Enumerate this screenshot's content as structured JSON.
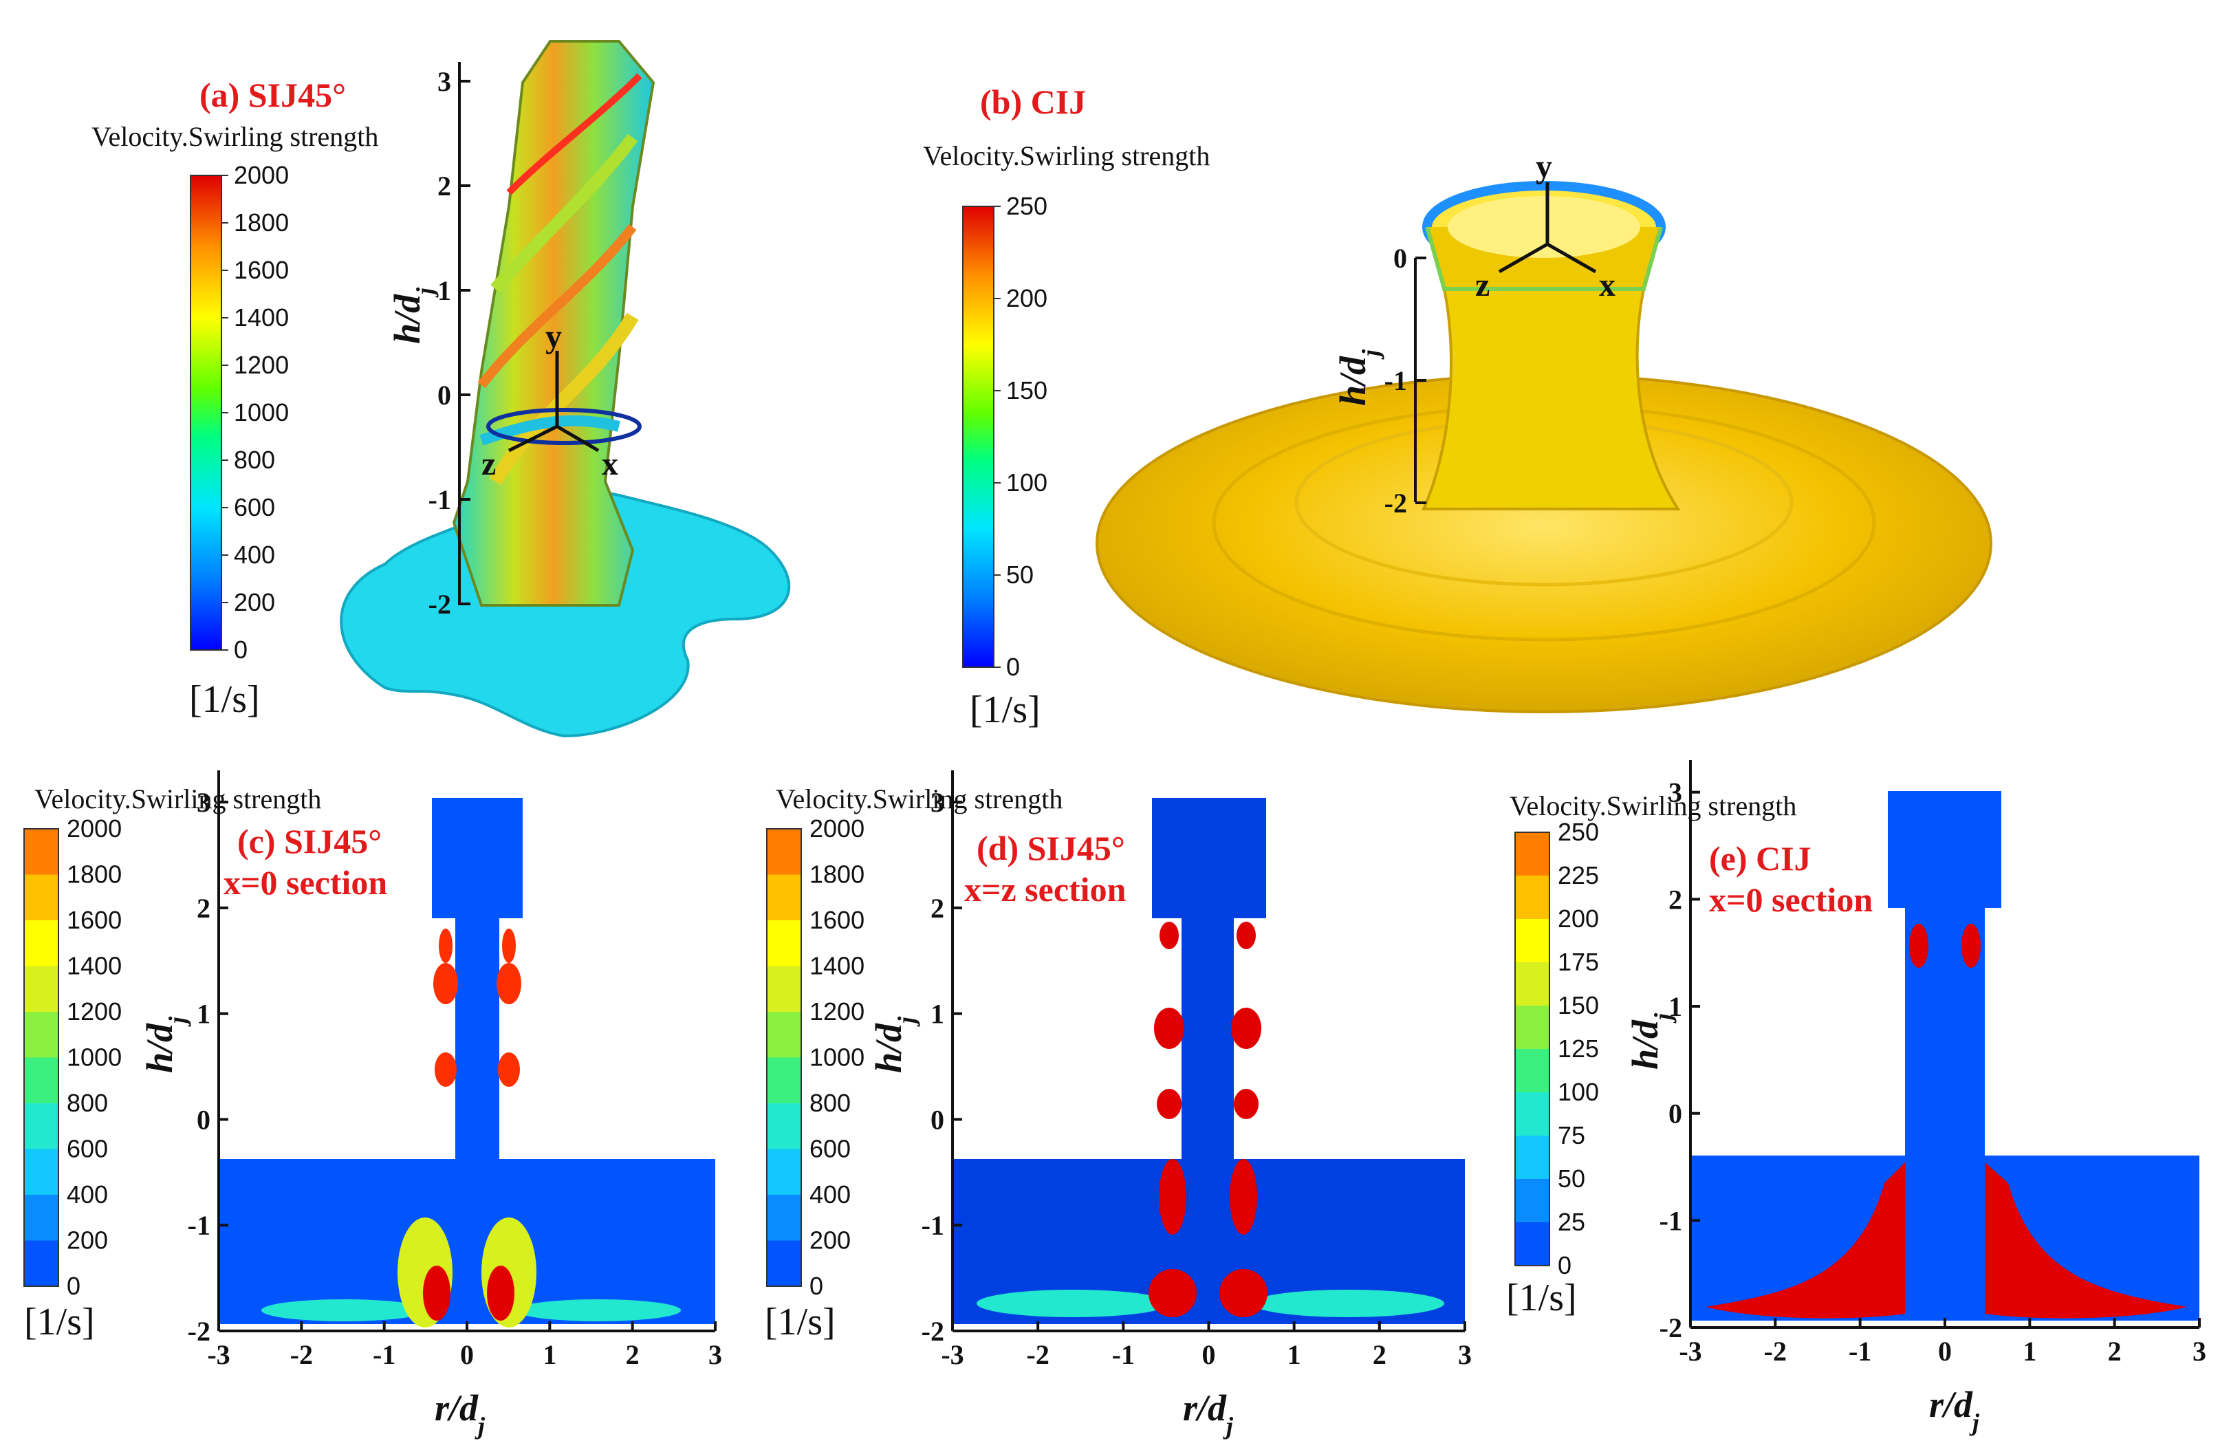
{
  "legend_title": "Velocity.Swirling strength",
  "unit": "[1/s]",
  "y_axis_label": "h/d",
  "y_axis_sub": "j",
  "x_axis_label": "r/d",
  "x_axis_sub": "j",
  "axis_letters": {
    "x": "x",
    "y": "y",
    "z": "z"
  },
  "colormap": [
    "#0000ff",
    "#0080ff",
    "#00e5ff",
    "#00ff80",
    "#40ff00",
    "#c8ff00",
    "#ffff00",
    "#ffc000",
    "#ff8000",
    "#ff2000",
    "#e00000"
  ],
  "panels": {
    "a": {
      "title": "(a) SIJ45°",
      "legend_ticks": [
        "2000",
        "1800",
        "1600",
        "1400",
        "1200",
        "1000",
        "800",
        "600",
        "400",
        "200",
        "0"
      ],
      "y_ticks": [
        "3",
        "2",
        "1",
        "0",
        "-1",
        "-2"
      ],
      "iso_color": "#19dcf0"
    },
    "b": {
      "title": "(b) CIJ",
      "legend_ticks": [
        "250",
        "200",
        "150",
        "100",
        "50",
        "0"
      ],
      "y_ticks": [
        "0",
        "-1",
        "-2"
      ],
      "iso_color": "#f0c800"
    },
    "c": {
      "title": "(c) SIJ45°",
      "subtitle": "x=0 section",
      "legend_ticks": [
        "2000",
        "1800",
        "1600",
        "1400",
        "1200",
        "1000",
        "800",
        "600",
        "400",
        "200",
        "0"
      ],
      "y_ticks": [
        "3",
        "2",
        "1",
        "0",
        "-1",
        "-2"
      ],
      "x_ticks": [
        "-3",
        "-2",
        "-1",
        "0",
        "1",
        "2",
        "3"
      ]
    },
    "d": {
      "title": "(d) SIJ45°",
      "subtitle": "x=z section",
      "legend_ticks": [
        "2000",
        "1800",
        "1600",
        "1400",
        "1200",
        "1000",
        "800",
        "600",
        "400",
        "200",
        "0"
      ],
      "y_ticks": [
        "3",
        "2",
        "1",
        "0",
        "-1",
        "-2"
      ],
      "x_ticks": [
        "-3",
        "-2",
        "-1",
        "0",
        "1",
        "2",
        "3"
      ]
    },
    "e": {
      "title": "(e) CIJ",
      "subtitle": "x=0 section",
      "legend_ticks": [
        "250",
        "225",
        "200",
        "175",
        "150",
        "125",
        "100",
        "75",
        "50",
        "25",
        "0"
      ],
      "y_ticks": [
        "3",
        "2",
        "1",
        "0",
        "-1",
        "-2"
      ],
      "x_ticks": [
        "-3",
        "-2",
        "-1",
        "0",
        "1",
        "2",
        "3"
      ]
    }
  },
  "bands": [
    "#0055ff",
    "#0a8cff",
    "#12c8ff",
    "#22e8d0",
    "#3cf080",
    "#8cf040",
    "#d8f020",
    "#ffff00",
    "#ffc000",
    "#ff8000",
    "#ff3000"
  ]
}
